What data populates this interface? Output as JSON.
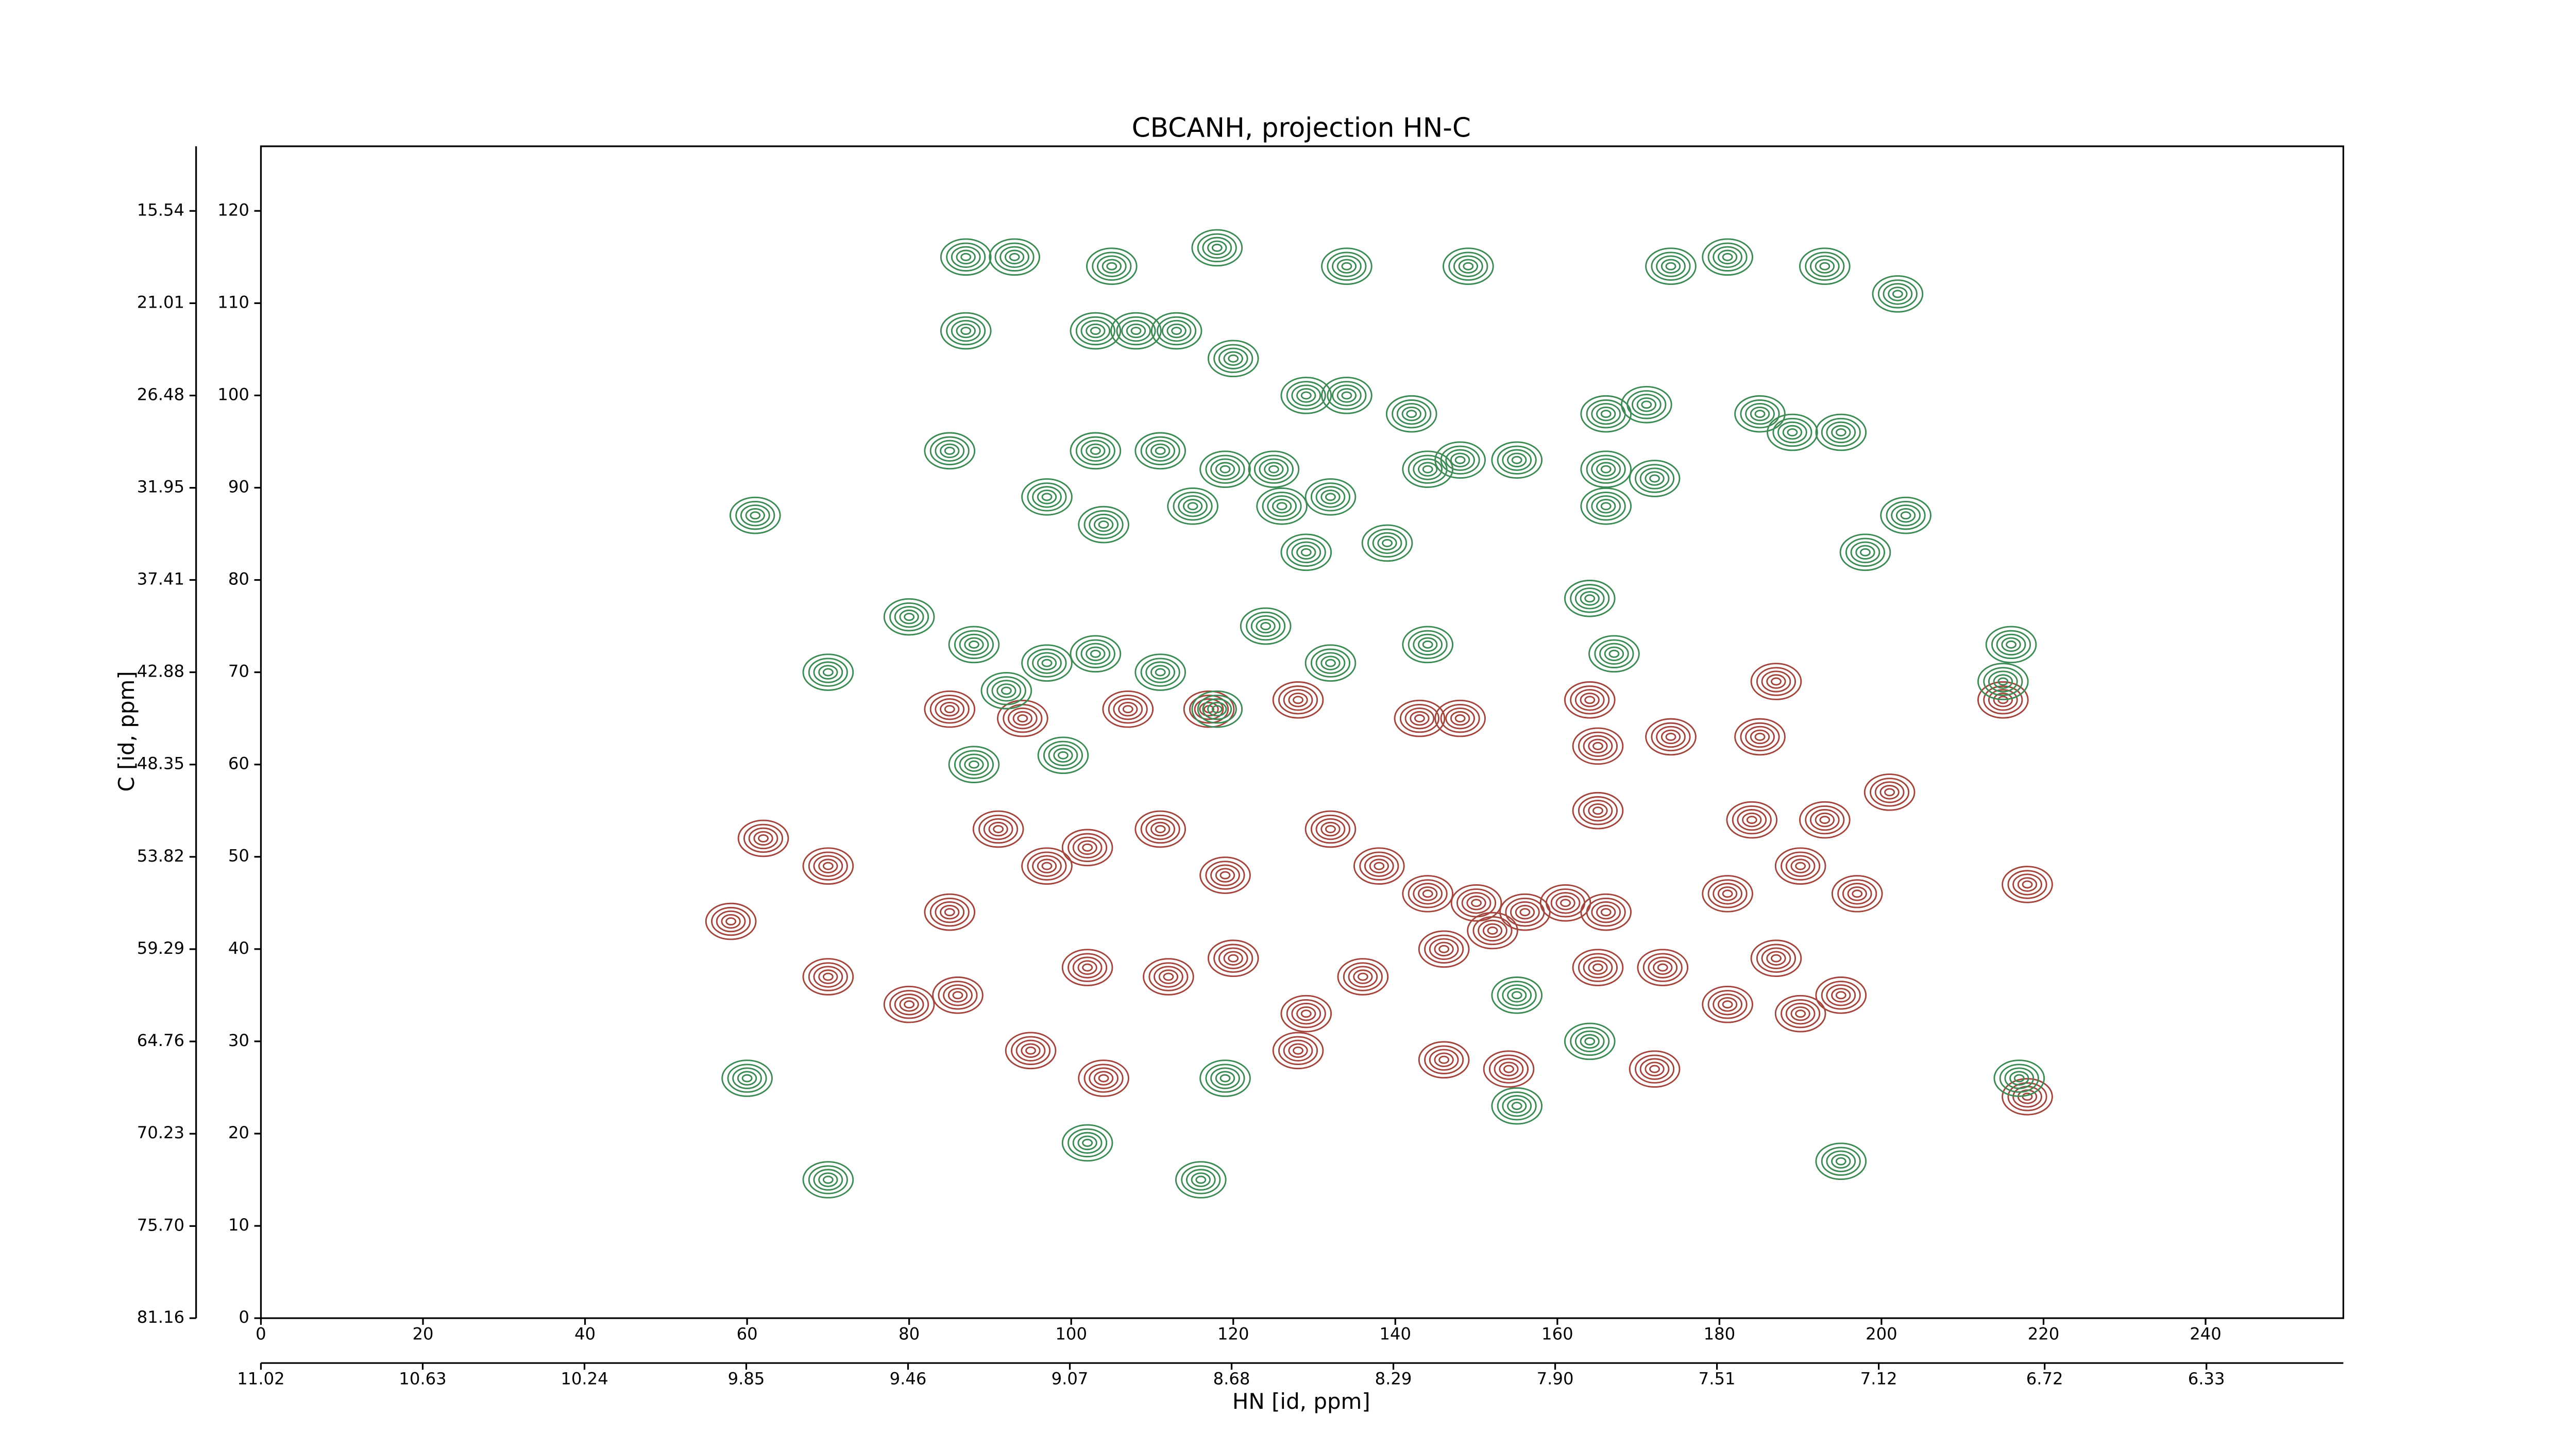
{
  "chart_data": {
    "type": "contour",
    "title": "CBCANH, projection HN-C",
    "x_label": "HN [id, ppm]",
    "y_label": "C [id, ppm]",
    "xlim": [
      0,
      257
    ],
    "xticks": [
      0,
      20,
      40,
      60,
      80,
      100,
      120,
      140,
      160,
      180,
      200,
      220,
      240
    ],
    "ylim": [
      0,
      127
    ],
    "yticks": [
      0,
      10,
      20,
      30,
      40,
      50,
      60,
      70,
      80,
      90,
      100,
      110,
      120
    ],
    "x2lim": [
      11.02,
      6.0
    ],
    "x2ticks": [
      11.02,
      10.63,
      10.24,
      9.85,
      9.46,
      9.07,
      8.68,
      8.29,
      {
        "value": 7.9,
        "label": "7.90"
      },
      7.51,
      7.12,
      6.72,
      6.33
    ],
    "y2lim": [
      81.16,
      11.71
    ],
    "y2ticks": [
      15.54,
      21.01,
      26.48,
      31.95,
      37.41,
      42.88,
      48.35,
      53.82,
      59.29,
      64.76,
      70.23,
      {
        "value": 75.7,
        "label": "75.70"
      },
      81.16
    ],
    "series": [
      {
        "color": "#a2453d",
        "x": [
          85,
          94,
          107,
          117,
          128,
          143,
          164,
          174,
          185,
          187,
          215,
          201,
          165,
          148,
          62,
          70,
          85,
          91,
          97,
          102,
          111,
          119,
          132,
          138,
          144,
          150,
          156,
          161,
          166,
          181,
          190,
          197,
          218,
          193,
          184,
          165,
          58,
          70,
          80,
          86,
          102,
          112,
          120,
          129,
          136,
          146,
          152,
          165,
          173,
          187,
          195,
          190,
          181,
          146,
          154,
          172,
          128,
          95,
          104,
          218
        ],
        "y": [
          66,
          65,
          66,
          66,
          67,
          65,
          67,
          63,
          63,
          69,
          67,
          57,
          62,
          65,
          52,
          49,
          44,
          53,
          49,
          51,
          53,
          48,
          53,
          49,
          46,
          45,
          44,
          45,
          44,
          46,
          49,
          46,
          47,
          54,
          54,
          55,
          43,
          37,
          34,
          35,
          38,
          37,
          39,
          33,
          37,
          40,
          42,
          38,
          38,
          39,
          35,
          33,
          34,
          28,
          27,
          27,
          29,
          29,
          26,
          24
        ]
      },
      {
        "color": "#3d8a55",
        "x": [
          87,
          93,
          105,
          118,
          134,
          149,
          181,
          193,
          202,
          174,
          87,
          103,
          108,
          113,
          120,
          129,
          134,
          142,
          166,
          171,
          185,
          189,
          195,
          85,
          103,
          111,
          119,
          125,
          132,
          148,
          155,
          166,
          172,
          61,
          97,
          104,
          115,
          126,
          139,
          144,
          166,
          203,
          198,
          129,
          164,
          80,
          88,
          97,
          103,
          124,
          132,
          144,
          216,
          167,
          70,
          111,
          92,
          118,
          215,
          99,
          88,
          155,
          164,
          217,
          60,
          119,
          155,
          70,
          116,
          195,
          102
        ],
        "y": [
          115,
          115,
          114,
          116,
          114,
          114,
          115,
          114,
          111,
          114,
          107,
          107,
          107,
          107,
          104,
          100,
          100,
          98,
          98,
          99,
          98,
          96,
          96,
          94,
          94,
          94,
          92,
          92,
          89,
          93,
          93,
          92,
          91,
          87,
          89,
          86,
          88,
          88,
          84,
          92,
          88,
          87,
          83,
          83,
          78,
          76,
          73,
          71,
          72,
          75,
          71,
          73,
          73,
          72,
          70,
          70,
          68,
          66,
          69,
          61,
          60,
          35,
          30,
          26,
          26,
          26,
          23,
          15,
          15,
          17,
          19
        ]
      }
    ]
  }
}
